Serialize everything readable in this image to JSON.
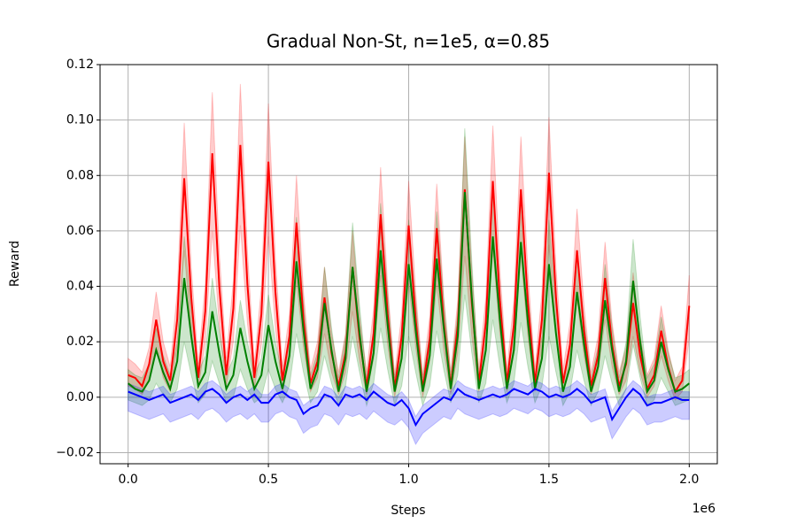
{
  "chart_data": {
    "type": "line",
    "title": "Gradual Non-St, n=1e5, α=0.85",
    "x_label": "Steps",
    "y_label": "Reward",
    "x_offset_label": "1e6",
    "xlim": [
      -100000,
      2100000
    ],
    "ylim": [
      -0.024,
      0.12
    ],
    "xticks": [
      {
        "value": 0,
        "label": "0.0"
      },
      {
        "value": 500000,
        "label": "0.5"
      },
      {
        "value": 1000000,
        "label": "1.0"
      },
      {
        "value": 1500000,
        "label": "1.5"
      },
      {
        "value": 2000000,
        "label": "2.0"
      }
    ],
    "yticks": [
      {
        "value": -0.02,
        "label": "−0.02"
      },
      {
        "value": 0,
        "label": "0.00"
      },
      {
        "value": 0.02,
        "label": "0.02"
      },
      {
        "value": 0.04,
        "label": "0.04"
      },
      {
        "value": 0.06,
        "label": "0.06"
      },
      {
        "value": 0.08,
        "label": "0.08"
      },
      {
        "value": 0.1,
        "label": "0.10"
      },
      {
        "value": 0.12,
        "label": "0.12"
      }
    ],
    "grid": true,
    "x": [
      0,
      25000,
      50000,
      75000,
      100000,
      125000,
      150000,
      175000,
      200000,
      225000,
      250000,
      275000,
      300000,
      325000,
      350000,
      375000,
      400000,
      425000,
      450000,
      475000,
      500000,
      525000,
      550000,
      575000,
      600000,
      625000,
      650000,
      675000,
      700000,
      725000,
      750000,
      775000,
      800000,
      825000,
      850000,
      875000,
      900000,
      925000,
      950000,
      975000,
      1000000,
      1025000,
      1050000,
      1075000,
      1100000,
      1125000,
      1150000,
      1175000,
      1200000,
      1225000,
      1250000,
      1275000,
      1300000,
      1325000,
      1350000,
      1375000,
      1400000,
      1425000,
      1450000,
      1475000,
      1500000,
      1525000,
      1550000,
      1575000,
      1600000,
      1625000,
      1650000,
      1675000,
      1700000,
      1725000,
      1750000,
      1775000,
      1800000,
      1825000,
      1850000,
      1875000,
      1900000,
      1925000,
      1950000,
      1975000,
      2000000
    ],
    "series": [
      {
        "color": "#ff0000",
        "values": [
          0.008,
          0.007,
          0.004,
          0.012,
          0.028,
          0.013,
          0.006,
          0.028,
          0.079,
          0.036,
          0.007,
          0.031,
          0.088,
          0.04,
          0.008,
          0.032,
          0.091,
          0.041,
          0.007,
          0.03,
          0.085,
          0.038,
          0.006,
          0.022,
          0.063,
          0.028,
          0.005,
          0.013,
          0.036,
          0.016,
          0.004,
          0.016,
          0.047,
          0.021,
          0.004,
          0.023,
          0.066,
          0.03,
          0.003,
          0.022,
          0.062,
          0.028,
          0.003,
          0.021,
          0.061,
          0.027,
          0.004,
          0.026,
          0.075,
          0.034,
          0.005,
          0.027,
          0.078,
          0.035,
          0.005,
          0.026,
          0.075,
          0.034,
          0.005,
          0.028,
          0.081,
          0.036,
          0.005,
          0.019,
          0.053,
          0.024,
          0.004,
          0.015,
          0.043,
          0.019,
          0.004,
          0.012,
          0.034,
          0.015,
          0.003,
          0.008,
          0.024,
          0.011,
          0.002,
          0.006,
          0.033
        ],
        "upper": [
          0.014,
          0.012,
          0.009,
          0.018,
          0.038,
          0.02,
          0.011,
          0.038,
          0.099,
          0.047,
          0.012,
          0.041,
          0.11,
          0.052,
          0.014,
          0.042,
          0.113,
          0.053,
          0.012,
          0.04,
          0.106,
          0.05,
          0.011,
          0.03,
          0.08,
          0.038,
          0.01,
          0.02,
          0.047,
          0.023,
          0.009,
          0.023,
          0.06,
          0.029,
          0.009,
          0.032,
          0.083,
          0.04,
          0.008,
          0.03,
          0.078,
          0.038,
          0.008,
          0.029,
          0.077,
          0.036,
          0.009,
          0.035,
          0.094,
          0.045,
          0.01,
          0.036,
          0.098,
          0.046,
          0.01,
          0.035,
          0.094,
          0.045,
          0.01,
          0.038,
          0.101,
          0.047,
          0.01,
          0.027,
          0.068,
          0.033,
          0.009,
          0.022,
          0.056,
          0.027,
          0.009,
          0.018,
          0.045,
          0.022,
          0.008,
          0.014,
          0.033,
          0.017,
          0.006,
          0.011,
          0.044
        ],
        "lower": [
          0.004,
          0.003,
          0.001,
          0.006,
          0.018,
          0.007,
          0.002,
          0.018,
          0.053,
          0.023,
          0.003,
          0.02,
          0.06,
          0.026,
          0.004,
          0.02,
          0.062,
          0.027,
          0.003,
          0.019,
          0.058,
          0.025,
          0.002,
          0.013,
          0.042,
          0.018,
          0.002,
          0.007,
          0.023,
          0.009,
          0.001,
          0.009,
          0.031,
          0.013,
          0.001,
          0.014,
          0.044,
          0.019,
          0,
          0.013,
          0.041,
          0.018,
          0,
          0.013,
          0.041,
          0.017,
          0.001,
          0.016,
          0.051,
          0.022,
          0.002,
          0.017,
          0.053,
          0.023,
          0.002,
          0.016,
          0.051,
          0.022,
          0.002,
          0.018,
          0.055,
          0.023,
          0.002,
          0.011,
          0.035,
          0.015,
          0.001,
          0.009,
          0.028,
          0.011,
          0.001,
          0.006,
          0.022,
          0.009,
          0,
          0.004,
          0.015,
          0.006,
          -0.001,
          0.002,
          0.021
        ]
      },
      {
        "color": "#008000",
        "values": [
          0.005,
          0.003,
          0.002,
          0.006,
          0.017,
          0.009,
          0.003,
          0.013,
          0.043,
          0.022,
          0.004,
          0.009,
          0.031,
          0.016,
          0.003,
          0.008,
          0.025,
          0.013,
          0.003,
          0.008,
          0.026,
          0.013,
          0.003,
          0.015,
          0.049,
          0.024,
          0.003,
          0.01,
          0.034,
          0.017,
          0.002,
          0.014,
          0.047,
          0.023,
          0.002,
          0.016,
          0.053,
          0.026,
          0.002,
          0.014,
          0.048,
          0.024,
          0.002,
          0.015,
          0.05,
          0.025,
          0.003,
          0.022,
          0.074,
          0.036,
          0.003,
          0.017,
          0.058,
          0.028,
          0.003,
          0.017,
          0.056,
          0.027,
          0.003,
          0.014,
          0.048,
          0.023,
          0.002,
          0.011,
          0.038,
          0.019,
          0.002,
          0.011,
          0.035,
          0.017,
          0.002,
          0.013,
          0.042,
          0.02,
          0.002,
          0.006,
          0.02,
          0.01,
          0.002,
          0.003,
          0.005
        ],
        "upper": [
          0.01,
          0.008,
          0.007,
          0.012,
          0.025,
          0.015,
          0.008,
          0.02,
          0.058,
          0.032,
          0.009,
          0.015,
          0.043,
          0.024,
          0.008,
          0.014,
          0.035,
          0.02,
          0.008,
          0.014,
          0.037,
          0.02,
          0.008,
          0.023,
          0.065,
          0.034,
          0.008,
          0.016,
          0.047,
          0.025,
          0.007,
          0.022,
          0.063,
          0.033,
          0.007,
          0.024,
          0.07,
          0.037,
          0.007,
          0.022,
          0.064,
          0.034,
          0.007,
          0.023,
          0.067,
          0.035,
          0.008,
          0.031,
          0.097,
          0.049,
          0.008,
          0.025,
          0.077,
          0.039,
          0.008,
          0.025,
          0.074,
          0.038,
          0.008,
          0.022,
          0.064,
          0.033,
          0.007,
          0.018,
          0.052,
          0.028,
          0.007,
          0.018,
          0.048,
          0.025,
          0.007,
          0.02,
          0.057,
          0.029,
          0.007,
          0.012,
          0.029,
          0.016,
          0.007,
          0.008,
          0.01
        ],
        "lower": [
          -0.001,
          -0.002,
          -0.003,
          -0.001,
          0.005,
          0.001,
          -0.002,
          0.003,
          0.02,
          0.008,
          -0.002,
          0.001,
          0.013,
          0.005,
          -0.002,
          0,
          0.01,
          0.003,
          -0.002,
          0,
          0.01,
          0.003,
          -0.002,
          0.004,
          0.023,
          0.009,
          -0.002,
          0.002,
          0.015,
          0.005,
          -0.003,
          0.004,
          0.022,
          0.009,
          -0.003,
          0.005,
          0.025,
          0.01,
          -0.003,
          0.004,
          0.022,
          0.009,
          -0.003,
          0.004,
          0.024,
          0.01,
          -0.002,
          0.008,
          0.037,
          0.016,
          -0.002,
          0.005,
          0.028,
          0.011,
          -0.002,
          0.005,
          0.027,
          0.011,
          -0.002,
          0.004,
          0.022,
          0.009,
          -0.003,
          0.002,
          0.017,
          0.006,
          -0.003,
          0.002,
          0.015,
          0.005,
          -0.003,
          0.003,
          0.019,
          0.007,
          -0.003,
          -0.001,
          0.007,
          0.002,
          -0.003,
          -0.002,
          -0.001
        ]
      },
      {
        "color": "#0000ff",
        "values": [
          0.002,
          0.001,
          0,
          -0.001,
          0,
          0.001,
          -0.002,
          -0.001,
          0,
          0.001,
          -0.001,
          0.002,
          0.003,
          0.001,
          -0.002,
          0,
          0.001,
          -0.001,
          0.001,
          -0.002,
          -0.002,
          0.001,
          0.002,
          0,
          -0.001,
          -0.006,
          -0.004,
          -0.003,
          0.001,
          0,
          -0.003,
          0.001,
          0,
          0.001,
          -0.001,
          0.002,
          0,
          -0.002,
          -0.003,
          -0.001,
          -0.004,
          -0.01,
          -0.006,
          -0.004,
          -0.002,
          0,
          -0.001,
          0.003,
          0.001,
          0,
          -0.001,
          0,
          0.001,
          0,
          0.001,
          0.003,
          0.002,
          0.001,
          0.003,
          0.002,
          0,
          0.001,
          0,
          0.001,
          0.003,
          0.001,
          -0.002,
          -0.001,
          0,
          -0.008,
          -0.004,
          0,
          0.003,
          0.001,
          -0.003,
          -0.002,
          -0.002,
          -0.001,
          0,
          -0.001,
          -0.001
        ],
        "upper": [
          0.005,
          0.004,
          0.003,
          0.002,
          0.003,
          0.004,
          0.001,
          0.002,
          0.003,
          0.004,
          0.002,
          0.005,
          0.006,
          0.004,
          0.001,
          0.003,
          0.004,
          0.002,
          0.004,
          0.001,
          0.001,
          0.004,
          0.005,
          0.003,
          0.002,
          -0.003,
          -0.001,
          0,
          0.004,
          0.003,
          0,
          0.004,
          0.003,
          0.004,
          0.002,
          0.005,
          0.003,
          0.001,
          0,
          0.002,
          -0.001,
          -0.007,
          -0.003,
          -0.001,
          0.001,
          0.003,
          0.002,
          0.006,
          0.004,
          0.003,
          0.002,
          0.003,
          0.004,
          0.003,
          0.004,
          0.006,
          0.005,
          0.004,
          0.006,
          0.005,
          0.003,
          0.004,
          0.003,
          0.004,
          0.006,
          0.004,
          0.001,
          0.002,
          0.003,
          -0.005,
          -0.001,
          0.003,
          0.006,
          0.004,
          0,
          0.001,
          0.001,
          0.002,
          0.003,
          0.002,
          0.002
        ],
        "lower": [
          -0.005,
          -0.006,
          -0.007,
          -0.008,
          -0.007,
          -0.006,
          -0.009,
          -0.008,
          -0.007,
          -0.006,
          -0.008,
          -0.005,
          -0.004,
          -0.006,
          -0.009,
          -0.007,
          -0.006,
          -0.008,
          -0.006,
          -0.009,
          -0.009,
          -0.006,
          -0.005,
          -0.007,
          -0.008,
          -0.013,
          -0.011,
          -0.01,
          -0.006,
          -0.007,
          -0.01,
          -0.006,
          -0.007,
          -0.006,
          -0.008,
          -0.005,
          -0.007,
          -0.009,
          -0.01,
          -0.008,
          -0.011,
          -0.017,
          -0.013,
          -0.011,
          -0.009,
          -0.007,
          -0.008,
          -0.004,
          -0.006,
          -0.007,
          -0.008,
          -0.007,
          -0.006,
          -0.007,
          -0.006,
          -0.004,
          -0.005,
          -0.006,
          -0.004,
          -0.005,
          -0.007,
          -0.006,
          -0.007,
          -0.006,
          -0.004,
          -0.006,
          -0.009,
          -0.008,
          -0.007,
          -0.015,
          -0.011,
          -0.007,
          -0.004,
          -0.006,
          -0.01,
          -0.009,
          -0.009,
          -0.008,
          -0.007,
          -0.008,
          -0.008
        ]
      }
    ]
  }
}
